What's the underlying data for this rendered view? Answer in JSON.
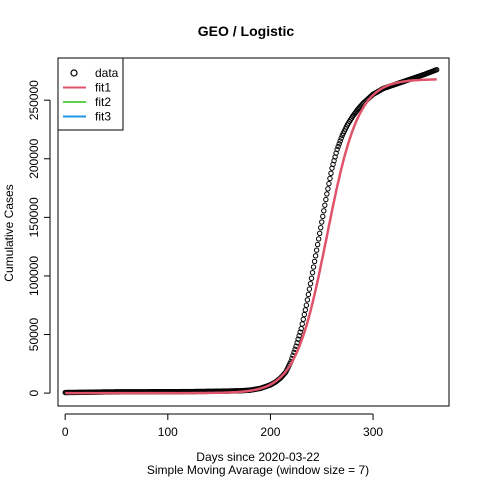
{
  "chart_data": {
    "type": "scatter",
    "title": "GEO / Logistic",
    "xlabel": "Days since 2020-03-22",
    "xlabel2": "Simple Moving Avarage (window size = 7)",
    "ylabel": "Cumulative Cases",
    "xlim": [
      -7,
      374
    ],
    "ylim": [
      -11000,
      286000
    ],
    "xticks": [
      0,
      100,
      200,
      300
    ],
    "yticks": [
      0,
      50000,
      100000,
      150000,
      200000,
      250000
    ],
    "grid": false,
    "legend": {
      "position": "top-left",
      "entries": [
        {
          "label": "data",
          "symbol": "open-circle",
          "color": "#000000"
        },
        {
          "label": "fit1",
          "symbol": "line",
          "color": "#DF536B"
        },
        {
          "label": "fit2",
          "symbol": "line",
          "color": "#61D04F"
        },
        {
          "label": "fit3",
          "symbol": "line",
          "color": "#2297E6"
        }
      ]
    },
    "data_points": [
      [
        0,
        500
      ],
      [
        20,
        700
      ],
      [
        40,
        1000
      ],
      [
        60,
        1100
      ],
      [
        80,
        1150
      ],
      [
        100,
        1200
      ],
      [
        120,
        1300
      ],
      [
        140,
        1500
      ],
      [
        160,
        1800
      ],
      [
        170,
        2000
      ],
      [
        180,
        2500
      ],
      [
        190,
        4000
      ],
      [
        200,
        7000
      ],
      [
        205,
        9500
      ],
      [
        210,
        13000
      ],
      [
        215,
        18000
      ],
      [
        220,
        27000
      ],
      [
        225,
        40000
      ],
      [
        230,
        55000
      ],
      [
        235,
        75000
      ],
      [
        240,
        98000
      ],
      [
        245,
        122000
      ],
      [
        250,
        146000
      ],
      [
        255,
        170000
      ],
      [
        260,
        192000
      ],
      [
        265,
        208000
      ],
      [
        270,
        220000
      ],
      [
        275,
        229000
      ],
      [
        280,
        236000
      ],
      [
        285,
        242000
      ],
      [
        290,
        247000
      ],
      [
        295,
        251000
      ],
      [
        300,
        255000
      ],
      [
        310,
        260000
      ],
      [
        320,
        263000
      ],
      [
        330,
        266000
      ],
      [
        340,
        269000
      ],
      [
        350,
        272000
      ],
      [
        362,
        276000
      ]
    ],
    "series": [
      {
        "name": "fit1",
        "color": "#DF536B",
        "curve": "logistic",
        "K": 268000,
        "r": 0.065,
        "t0": 255,
        "x_range": [
          0,
          362
        ]
      }
    ]
  }
}
